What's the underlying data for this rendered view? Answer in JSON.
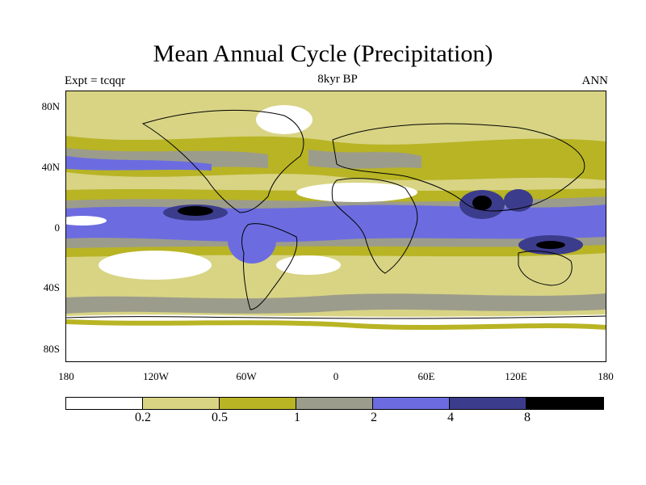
{
  "title": "Mean Annual Cycle (Precipitation)",
  "subtitle": "8kyr BP",
  "experiment": "Expt = tcqqr",
  "season": "ANN",
  "lat_labels": [
    "80N",
    "40N",
    "0",
    "40S",
    "80S"
  ],
  "lon_labels": [
    "180",
    "120W",
    "60W",
    "0",
    "60E",
    "120E",
    "180"
  ],
  "colorbar": {
    "colors": [
      "#ffffff",
      "#d8d484",
      "#b8b424",
      "#9c9c8c",
      "#6c6ce0",
      "#3c3c8c",
      "#000000"
    ],
    "labels": [
      "0.2",
      "0.5",
      "1",
      "2",
      "4",
      "8"
    ]
  }
}
